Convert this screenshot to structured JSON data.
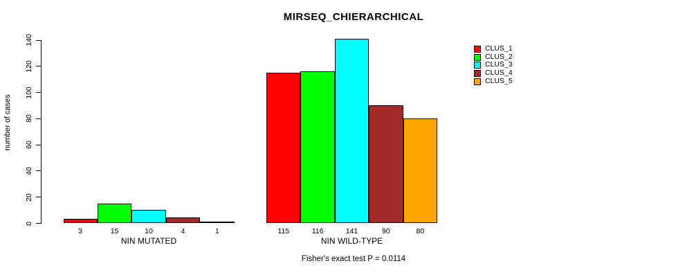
{
  "title": "MIRSEQ_CHIERARCHICAL",
  "subtitle": "Fisher's exact test P = 0.0114",
  "chart_data": {
    "type": "bar",
    "title": "MIRSEQ_CHIERARCHICAL",
    "ylabel": "number of cases",
    "xlabel": "",
    "ylim": [
      0,
      140
    ],
    "yticks": [
      0,
      20,
      40,
      60,
      80,
      100,
      120,
      140
    ],
    "grid": false,
    "legend_position": "top-right",
    "categories": [
      "NIN MUTATED",
      "NIN WILD-TYPE"
    ],
    "bar_value_labels_shown": true,
    "series": [
      {
        "name": "CLUS_1",
        "color": "#FF0000",
        "values": [
          3,
          115
        ]
      },
      {
        "name": "CLUS_2",
        "color": "#00FF00",
        "values": [
          15,
          116
        ]
      },
      {
        "name": "CLUS_3",
        "color": "#00FFFF",
        "values": [
          10,
          141
        ]
      },
      {
        "name": "CLUS_4",
        "color": "#A52A2A",
        "values": [
          4,
          90
        ]
      },
      {
        "name": "CLUS_5",
        "color": "#FFA500",
        "values": [
          1,
          80
        ]
      }
    ],
    "annotation": "Fisher's exact test P = 0.0114"
  },
  "legend": {
    "items": [
      {
        "label": "CLUS_1",
        "color": "#FF0000"
      },
      {
        "label": "CLUS_2",
        "color": "#00FF00"
      },
      {
        "label": "CLUS_3",
        "color": "#00FFFF"
      },
      {
        "label": "CLUS_4",
        "color": "#A52A2A"
      },
      {
        "label": "CLUS_5",
        "color": "#FFA500"
      }
    ]
  }
}
